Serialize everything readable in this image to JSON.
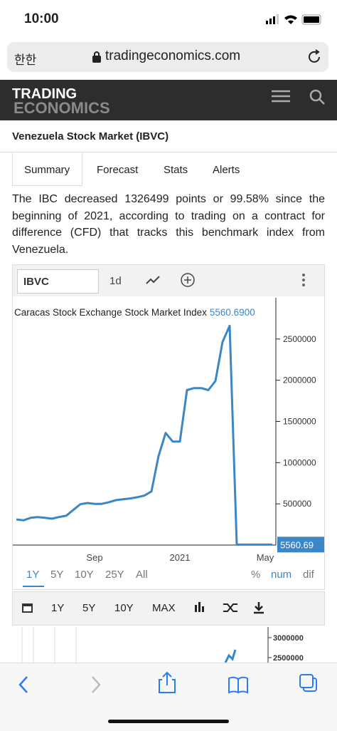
{
  "status": {
    "time": "10:00"
  },
  "browser": {
    "aa": "한한",
    "url": "tradingeconomics.com"
  },
  "header": {
    "logo_top": "TRADING",
    "logo_bottom": "ECONOMICS"
  },
  "page_title": "Venezuela Stock Market (IBVC)",
  "tabs": [
    "Summary",
    "Forecast",
    "Stats",
    "Alerts"
  ],
  "intro": "The IBC decreased 1326499 points or 99.58% since the beginning of 2021, according to trading on a contract for difference (CFD) that tracks this benchmark index from Venezuela.",
  "toolbar": {
    "symbol": "IBVC",
    "interval": "1d"
  },
  "chart_data": {
    "type": "line",
    "title": "Caracas Stock Exchange Stock Market Index",
    "last_text": "5560.6900",
    "last_label": "5560.69",
    "categories": [
      null,
      null,
      null,
      null,
      null,
      null,
      null,
      null,
      null,
      null,
      null,
      "Sep",
      null,
      null,
      null,
      null,
      null,
      null,
      null,
      null,
      null,
      null,
      null,
      "2021",
      null,
      null,
      null,
      null,
      null,
      null,
      null,
      null,
      null,
      null,
      null,
      "May",
      null
    ],
    "series": [
      {
        "name": "IBVC",
        "color": "#3b87c6",
        "values": [
          310000,
          300000,
          330000,
          340000,
          330000,
          320000,
          340000,
          355000,
          425000,
          495000,
          510000,
          500000,
          500000,
          520000,
          545000,
          555000,
          565000,
          580000,
          600000,
          650000,
          1080000,
          1360000,
          1255000,
          1255000,
          1880000,
          1905000,
          1905000,
          1880000,
          1990000,
          2465000,
          2660000,
          5560.69,
          5560.69,
          5560.69,
          5560.69,
          5560.69,
          5560.69
        ]
      }
    ],
    "ylim": [
      0,
      3000000
    ],
    "yticks": [
      500000,
      1000000,
      1500000,
      2000000,
      2500000
    ],
    "grid": false
  },
  "ranges": [
    "1Y",
    "5Y",
    "10Y",
    "25Y",
    "All"
  ],
  "modes": [
    "%",
    "num",
    "dif"
  ],
  "toolbar2": [
    "1Y",
    "5Y",
    "10Y",
    "MAX"
  ],
  "mini_chart": {
    "yticks": [
      3000000,
      2500000
    ]
  }
}
